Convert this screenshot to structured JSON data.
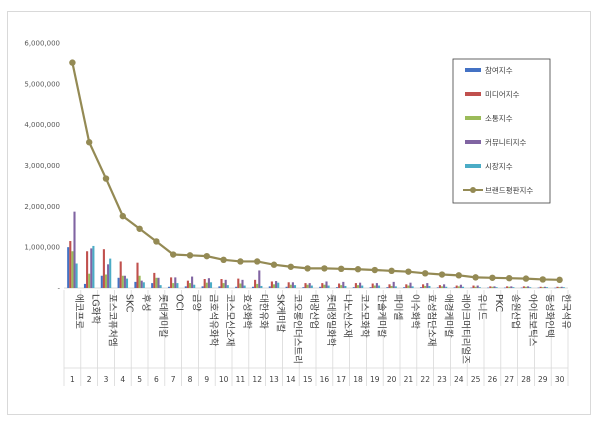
{
  "chart_data": {
    "type": "bar",
    "ylim": [
      0,
      6000000
    ],
    "yticks": [
      0,
      1000000,
      2000000,
      3000000,
      4000000,
      5000000,
      6000000
    ],
    "ytick_labels": [
      "-",
      "1,000,000",
      "2,000,000",
      "3,000,000",
      "4,000,000",
      "5,000,000",
      "6,000,000"
    ],
    "categories": [
      "에코프로",
      "LG화학",
      "포스코퓨처엠",
      "SKC",
      "후성",
      "롯데케미칼",
      "OCI",
      "금양",
      "금호석유화학",
      "코스모신소재",
      "효성화학",
      "대한유화",
      "SK케미칼",
      "코오롱인더스트리",
      "태광산업",
      "롯데정밀화학",
      "나노신소재",
      "코스모화학",
      "한솔케미칼",
      "파미셀",
      "이수화학",
      "효성첨단소재",
      "애경케미칼",
      "레이크머티리얼즈",
      "유니드",
      "PKC",
      "송원산업",
      "아이로보틱스",
      "동성화인텍",
      "한국석유"
    ],
    "index_labels": [
      "1",
      "2",
      "3",
      "4",
      "5",
      "6",
      "7",
      "8",
      "9",
      "10",
      "11",
      "12",
      "13",
      "14",
      "15",
      "16",
      "17",
      "18",
      "19",
      "20",
      "21",
      "22",
      "23",
      "24",
      "25",
      "26",
      "27",
      "28",
      "29",
      "30"
    ],
    "series": [
      {
        "name": "참여지수",
        "color": "#4472c4",
        "values": [
          1000000,
          100000,
          300000,
          250000,
          150000,
          120000,
          30000,
          40000,
          40000,
          40000,
          30000,
          30000,
          40000,
          30000,
          20000,
          30000,
          20000,
          20000,
          20000,
          20000,
          20000,
          20000,
          15000,
          15000,
          10000,
          10000,
          10000,
          10000,
          10000,
          8000
        ]
      },
      {
        "name": "미디어지수",
        "color": "#c0504d",
        "values": [
          1150000,
          900000,
          950000,
          650000,
          620000,
          370000,
          260000,
          180000,
          220000,
          220000,
          230000,
          200000,
          160000,
          140000,
          120000,
          120000,
          110000,
          120000,
          110000,
          90000,
          90000,
          90000,
          70000,
          60000,
          60000,
          40000,
          40000,
          40000,
          30000,
          30000
        ]
      },
      {
        "name": "소통지수",
        "color": "#9bbb59",
        "values": [
          900000,
          350000,
          330000,
          300000,
          300000,
          250000,
          120000,
          120000,
          130000,
          120000,
          110000,
          100000,
          90000,
          80000,
          80000,
          80000,
          70000,
          70000,
          60000,
          50000,
          60000,
          50000,
          40000,
          40000,
          30000,
          30000,
          30000,
          30000,
          20000,
          20000
        ]
      },
      {
        "name": "커뮤니티지수",
        "color": "#8064a2",
        "values": [
          1870000,
          970000,
          580000,
          300000,
          180000,
          250000,
          260000,
          280000,
          240000,
          200000,
          200000,
          430000,
          170000,
          140000,
          120000,
          160000,
          150000,
          130000,
          120000,
          150000,
          130000,
          120000,
          90000,
          80000,
          60000,
          40000,
          40000,
          40000,
          30000,
          30000
        ]
      },
      {
        "name": "시장지수",
        "color": "#4bacc6",
        "values": [
          600000,
          1030000,
          720000,
          230000,
          140000,
          70000,
          120000,
          80000,
          140000,
          70000,
          60000,
          50000,
          130000,
          70000,
          60000,
          60000,
          50000,
          60000,
          60000,
          40000,
          40000,
          50000,
          30000,
          30000,
          20000,
          20000,
          20000,
          20000,
          20000,
          20000
        ]
      },
      {
        "name": "브랜드평판지수",
        "color": "#948a54",
        "values": [
          5520000,
          3570000,
          2680000,
          1760000,
          1450000,
          1140000,
          820000,
          800000,
          780000,
          690000,
          650000,
          650000,
          570000,
          520000,
          480000,
          480000,
          470000,
          460000,
          440000,
          420000,
          400000,
          360000,
          330000,
          310000,
          260000,
          250000,
          240000,
          230000,
          210000,
          200000
        ]
      }
    ],
    "legend": [
      "참여지수",
      "미디어지수",
      "소통지수",
      "커뮤니티지수",
      "시장지수",
      "브랜드평판지수"
    ],
    "legend_position": "right",
    "grid": false
  }
}
